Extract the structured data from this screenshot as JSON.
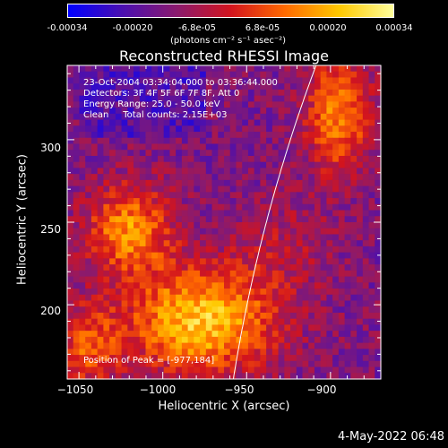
{
  "colors": {
    "background": "#000000",
    "foreground": "#ffffff",
    "colormap": [
      "#0000ff",
      "#4a0fb0",
      "#8a1a6e",
      "#d2141e",
      "#ff6a00",
      "#ffc800",
      "#ffff9c"
    ]
  },
  "colorbar": {
    "ticks": [
      "-0.00034",
      "-0.00020",
      "-6.8e-05",
      "6.8e-05",
      "0.00020",
      "0.00034"
    ],
    "unit_label": "(photons cm⁻² s⁻¹ asec⁻²)"
  },
  "chart_data": {
    "type": "heatmap",
    "title": "Reconstructed RHESSI Image",
    "xlabel": "Heliocentric X (arcsec)",
    "ylabel": "Heliocentric Y (arcsec)",
    "xlim": [
      -1057,
      -870
    ],
    "ylim": [
      155,
      345
    ],
    "x_ticks": [
      -1050,
      -1000,
      -950,
      -900
    ],
    "y_ticks": [
      200,
      250,
      300
    ],
    "x_tick_labels": [
      "−1050",
      "−1000",
      "−950",
      "−900"
    ],
    "y_tick_labels": [
      "200",
      "250",
      "300"
    ],
    "value_range": [
      -0.00034,
      0.00034
    ],
    "peak_position": [
      -977,
      184
    ],
    "annotations": {
      "time_range": "23-Oct-2004 03:34:04.000 to 03:36:44.000",
      "detectors": "Detectors: 3F 4F 5F 6F 7F 8F, Att 0",
      "energy_range": "Energy Range: 25.0 - 50.0 keV",
      "clean_counts": "Clean     Total counts: 2.15E+03",
      "peak_label": "Position of Peak = [-977,184]"
    },
    "limb_line": true
  },
  "footer": {
    "date": "4-May-2022 06:48"
  }
}
